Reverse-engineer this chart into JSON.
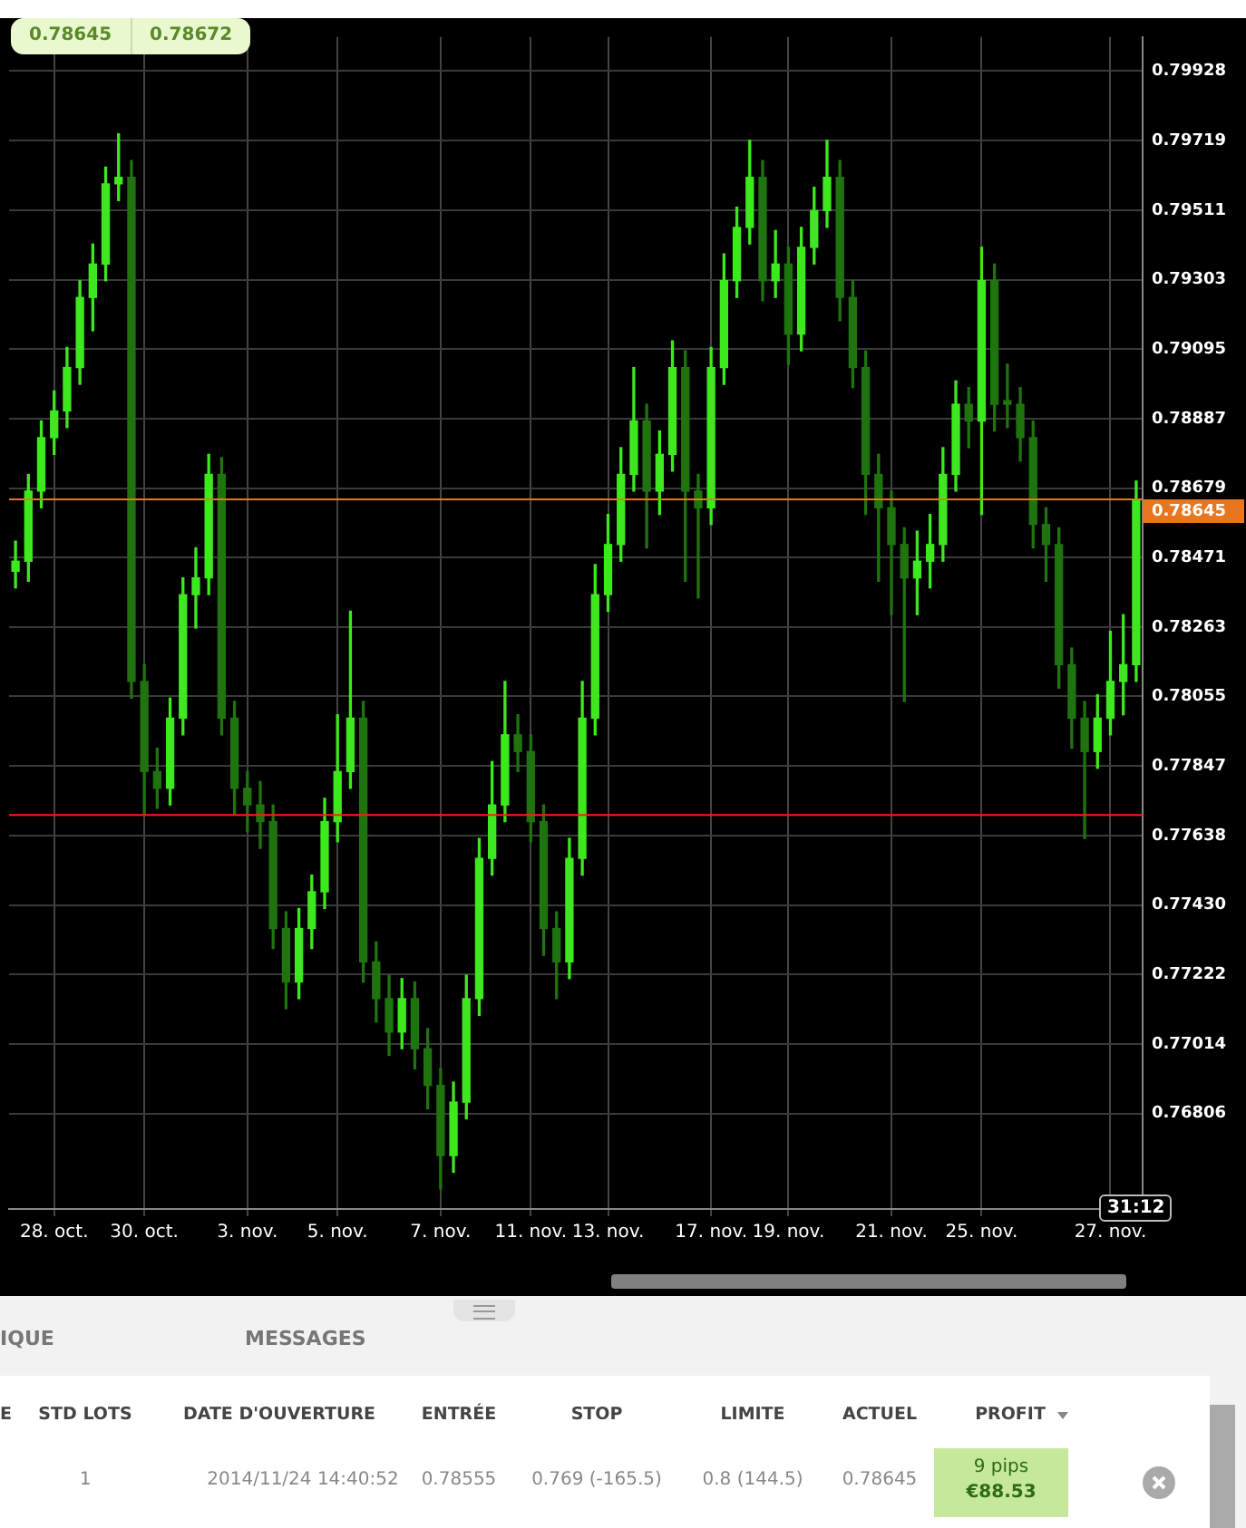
{
  "chart_data": {
    "type": "candlestick",
    "legend": false,
    "grid": true,
    "colors": [
      "#3ee81e",
      "#3ee81e",
      "#3ee81e",
      "#3ee81e",
      "#3ee81e",
      "#3ee81e",
      "#3ee81e",
      "#3ee81e",
      "#3ee81e",
      "#1f740f",
      "#1f740f",
      "#1f740f",
      "#3ee81e",
      "#3ee81e",
      "#3ee81e",
      "#3ee81e",
      "#1f740f",
      "#1f740f",
      "#1f740f",
      "#1f740f",
      "#1f740f",
      "#1f740f",
      "#3ee81e",
      "#3ee81e",
      "#3ee81e",
      "#3ee81e",
      "#3ee81e",
      "#1f740f",
      "#1f740f",
      "#1f740f",
      "#3ee81e",
      "#1f740f",
      "#1f740f",
      "#1f740f",
      "#3ee81e",
      "#3ee81e",
      "#3ee81e",
      "#3ee81e",
      "#3ee81e",
      "#1f740f",
      "#1f740f",
      "#1f740f",
      "#1f740f",
      "#3ee81e",
      "#3ee81e",
      "#3ee81e",
      "#3ee81e",
      "#3ee81e",
      "#3ee81e",
      "#1f740f",
      "#3ee81e",
      "#3ee81e",
      "#1f740f",
      "#1f740f",
      "#3ee81e",
      "#3ee81e",
      "#3ee81e",
      "#3ee81e",
      "#1f740f",
      "#3ee81e",
      "#1f740f",
      "#3ee81e",
      "#3ee81e",
      "#3ee81e",
      "#1f740f",
      "#1f740f",
      "#1f740f",
      "#1f740f",
      "#1f740f",
      "#1f740f",
      "#3ee81e",
      "#3ee81e",
      "#3ee81e",
      "#3ee81e",
      "#1f740f",
      "#3ee81e",
      "#1f740f",
      "#1f740f",
      "#1f740f",
      "#1f740f",
      "#1f740f",
      "#1f740f",
      "#1f740f",
      "#1f740f",
      "#3ee81e",
      "#3ee81e",
      "#3ee81e",
      "#3ee81e"
    ],
    "categories": [
      null,
      null,
      null,
      "28. oct.",
      null,
      null,
      null,
      null,
      null,
      null,
      "30. oct.",
      null,
      null,
      null,
      null,
      null,
      null,
      null,
      "3. nov.",
      null,
      null,
      null,
      null,
      null,
      null,
      "5. nov.",
      null,
      null,
      null,
      null,
      null,
      null,
      null,
      "7. nov.",
      null,
      null,
      null,
      null,
      null,
      null,
      "11. nov.",
      null,
      null,
      null,
      null,
      null,
      "13. nov.",
      null,
      null,
      null,
      null,
      null,
      null,
      null,
      "17. nov.",
      null,
      null,
      null,
      null,
      null,
      "19. nov.",
      null,
      null,
      null,
      null,
      null,
      null,
      null,
      "21. nov.",
      null,
      null,
      null,
      null,
      null,
      null,
      "25. nov.",
      null,
      null,
      null,
      null,
      null,
      null,
      null,
      null,
      null,
      "27. nov.",
      null,
      null
    ],
    "ohlc": [
      [
        0.7843,
        0.7852,
        0.7838,
        0.7846
      ],
      [
        0.7846,
        0.7872,
        0.784,
        0.7867
      ],
      [
        0.7867,
        0.7888,
        0.7862,
        0.7883
      ],
      [
        0.7883,
        0.7897,
        0.7878,
        0.7891
      ],
      [
        0.7891,
        0.791,
        0.7886,
        0.7904
      ],
      [
        0.7904,
        0.793,
        0.7899,
        0.7925
      ],
      [
        0.7925,
        0.7941,
        0.7915,
        0.7935
      ],
      [
        0.7935,
        0.7964,
        0.793,
        0.7959
      ],
      [
        0.7959,
        0.7974,
        0.7954,
        0.7961
      ],
      [
        0.7961,
        0.7966,
        0.7805,
        0.781
      ],
      [
        0.781,
        0.7815,
        0.777,
        0.7783
      ],
      [
        0.7783,
        0.779,
        0.7772,
        0.7778
      ],
      [
        0.7778,
        0.7805,
        0.7773,
        0.7799
      ],
      [
        0.7799,
        0.7841,
        0.7794,
        0.7836
      ],
      [
        0.7836,
        0.785,
        0.7826,
        0.7841
      ],
      [
        0.7841,
        0.7878,
        0.7836,
        0.7872
      ],
      [
        0.7872,
        0.7877,
        0.7794,
        0.7799
      ],
      [
        0.7799,
        0.7804,
        0.777,
        0.7778
      ],
      [
        0.7778,
        0.7783,
        0.7765,
        0.7773
      ],
      [
        0.7773,
        0.778,
        0.776,
        0.7768
      ],
      [
        0.7768,
        0.7773,
        0.773,
        0.7736
      ],
      [
        0.7736,
        0.7741,
        0.7712,
        0.772
      ],
      [
        0.772,
        0.7742,
        0.7715,
        0.7736
      ],
      [
        0.7736,
        0.7752,
        0.773,
        0.7747
      ],
      [
        0.7747,
        0.7775,
        0.7742,
        0.7768
      ],
      [
        0.7768,
        0.78,
        0.7762,
        0.7783
      ],
      [
        0.7783,
        0.7831,
        0.7778,
        0.7799
      ],
      [
        0.7799,
        0.7804,
        0.772,
        0.7726
      ],
      [
        0.7726,
        0.7732,
        0.7708,
        0.7715
      ],
      [
        0.7715,
        0.7722,
        0.7698,
        0.7705
      ],
      [
        0.7705,
        0.7721,
        0.77,
        0.7715
      ],
      [
        0.7715,
        0.772,
        0.7694,
        0.77
      ],
      [
        0.77,
        0.7706,
        0.7682,
        0.7689
      ],
      [
        0.7689,
        0.7694,
        0.7658,
        0.7668
      ],
      [
        0.7668,
        0.769,
        0.7663,
        0.7684
      ],
      [
        0.7684,
        0.7722,
        0.7679,
        0.7715
      ],
      [
        0.7715,
        0.7763,
        0.771,
        0.7757
      ],
      [
        0.7757,
        0.7786,
        0.7752,
        0.7773
      ],
      [
        0.7773,
        0.781,
        0.7768,
        0.7794
      ],
      [
        0.7794,
        0.78,
        0.7783,
        0.7789
      ],
      [
        0.7789,
        0.7794,
        0.7762,
        0.7768
      ],
      [
        0.7768,
        0.7773,
        0.7728,
        0.7736
      ],
      [
        0.7736,
        0.7741,
        0.7715,
        0.7726
      ],
      [
        0.7726,
        0.7763,
        0.7721,
        0.7757
      ],
      [
        0.7757,
        0.781,
        0.7752,
        0.7799
      ],
      [
        0.7799,
        0.7845,
        0.7794,
        0.7836
      ],
      [
        0.7836,
        0.786,
        0.7831,
        0.7851
      ],
      [
        0.7851,
        0.788,
        0.7846,
        0.7872
      ],
      [
        0.7872,
        0.7904,
        0.7867,
        0.7888
      ],
      [
        0.7888,
        0.7893,
        0.785,
        0.7867
      ],
      [
        0.7867,
        0.7885,
        0.786,
        0.7878
      ],
      [
        0.7878,
        0.7912,
        0.7873,
        0.7904
      ],
      [
        0.7904,
        0.7909,
        0.784,
        0.7867
      ],
      [
        0.7867,
        0.7872,
        0.7835,
        0.7862
      ],
      [
        0.7862,
        0.791,
        0.7857,
        0.7904
      ],
      [
        0.7904,
        0.7938,
        0.7899,
        0.793
      ],
      [
        0.793,
        0.7952,
        0.7925,
        0.7946
      ],
      [
        0.7946,
        0.7972,
        0.7941,
        0.7961
      ],
      [
        0.7961,
        0.7966,
        0.7924,
        0.793
      ],
      [
        0.793,
        0.7945,
        0.7925,
        0.7935
      ],
      [
        0.7935,
        0.794,
        0.7905,
        0.7914
      ],
      [
        0.7914,
        0.7946,
        0.7909,
        0.794
      ],
      [
        0.794,
        0.7958,
        0.7935,
        0.7951
      ],
      [
        0.7951,
        0.7972,
        0.7946,
        0.7961
      ],
      [
        0.7961,
        0.7966,
        0.7918,
        0.7925
      ],
      [
        0.7925,
        0.793,
        0.7898,
        0.7904
      ],
      [
        0.7904,
        0.7909,
        0.786,
        0.7872
      ],
      [
        0.7872,
        0.7878,
        0.784,
        0.7862
      ],
      [
        0.7862,
        0.7867,
        0.783,
        0.7851
      ],
      [
        0.7851,
        0.7856,
        0.7804,
        0.7841
      ],
      [
        0.7841,
        0.7855,
        0.783,
        0.7846
      ],
      [
        0.7846,
        0.786,
        0.7838,
        0.7851
      ],
      [
        0.7851,
        0.788,
        0.7846,
        0.7872
      ],
      [
        0.7872,
        0.79,
        0.7867,
        0.7893
      ],
      [
        0.7893,
        0.7898,
        0.788,
        0.7888
      ],
      [
        0.7888,
        0.794,
        0.786,
        0.793
      ],
      [
        0.793,
        0.7935,
        0.7885,
        0.7893
      ],
      [
        0.7893,
        0.7905,
        0.7886,
        0.7893
      ],
      [
        0.7893,
        0.7898,
        0.7876,
        0.7883
      ],
      [
        0.7883,
        0.7888,
        0.785,
        0.7857
      ],
      [
        0.7857,
        0.7862,
        0.784,
        0.7851
      ],
      [
        0.7851,
        0.7856,
        0.7808,
        0.7815
      ],
      [
        0.7815,
        0.782,
        0.779,
        0.7799
      ],
      [
        0.7799,
        0.7804,
        0.7763,
        0.7789
      ],
      [
        0.7789,
        0.7806,
        0.7784,
        0.7799
      ],
      [
        0.7799,
        0.7825,
        0.7794,
        0.781
      ],
      [
        0.781,
        0.783,
        0.78,
        0.7815
      ],
      [
        0.7815,
        0.787,
        0.781,
        0.78645
      ]
    ],
    "ylim": [
      0.7652,
      0.8003
    ],
    "yticks": [
      0.79928,
      0.79719,
      0.79511,
      0.79303,
      0.79095,
      0.78887,
      0.78679,
      0.78471,
      0.78263,
      0.78055,
      0.77847,
      0.77638,
      {
        "value": 0.7743,
        "label": "0.77430"
      },
      0.77222,
      0.77014,
      0.76806
    ],
    "ref_lines": [
      {
        "axis": "y",
        "value": 0.78645,
        "label": "0.78645",
        "color": "#e8761e"
      },
      {
        "axis": "y",
        "value": 0.777,
        "color": "#ff1a1a"
      }
    ],
    "annotations": [
      "0.78645",
      "0.78672",
      "31:12",
      "IQUE",
      "MESSAGES",
      "E",
      "STD LOTS",
      "DATE D'OUVERTURE",
      "ENTRÉE",
      "STOP",
      "LIMITE",
      "ACTUEL",
      "PROFIT",
      "1",
      "2014/11/24 14:40:52",
      "0.78555",
      "0.769 (-165.5)",
      "0.8 (144.5)",
      "0.78645",
      "9 pips",
      "€88.53"
    ]
  }
}
